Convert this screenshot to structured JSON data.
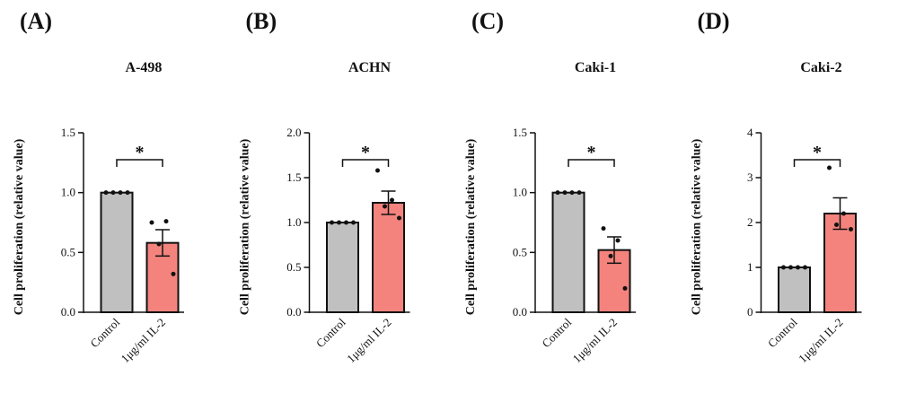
{
  "chart_data": [
    {
      "type": "bar",
      "panel": "(A)",
      "title": "A-498",
      "y_label": "Cell proliferation (relative value)",
      "categories": [
        "Control",
        "1μg/ml IL-2"
      ],
      "values": [
        1.0,
        0.58
      ],
      "errors": [
        0,
        0.11
      ],
      "points": [
        [
          1.0,
          1.0,
          1.0,
          1.0
        ],
        [
          0.75,
          0.76,
          0.57,
          0.32
        ]
      ],
      "colors": [
        "#c0c0c0",
        "#f4837d"
      ],
      "significance": "*",
      "ylim": [
        0,
        1.5
      ],
      "yticks": [
        {
          "value": 0,
          "label": "0.0"
        },
        0.5,
        {
          "value": 1,
          "label": "1.0"
        },
        1.5
      ]
    },
    {
      "type": "bar",
      "panel": "(B)",
      "title": "ACHN",
      "y_label": "Cell proliferation (relative value)",
      "categories": [
        "Control",
        "1μg/ml IL-2"
      ],
      "values": [
        1.0,
        1.22
      ],
      "errors": [
        0,
        0.13
      ],
      "points": [
        [
          1.0,
          1.0,
          1.0,
          1.0
        ],
        [
          1.58,
          1.25,
          1.18,
          1.05
        ]
      ],
      "colors": [
        "#c0c0c0",
        "#f4837d"
      ],
      "significance": "*",
      "ylim": [
        0,
        2
      ],
      "yticks": [
        {
          "value": 0,
          "label": "0.0"
        },
        0.5,
        {
          "value": 1,
          "label": "1.0"
        },
        1.5,
        {
          "value": 2,
          "label": "2.0"
        }
      ]
    },
    {
      "type": "bar",
      "panel": "(C)",
      "title": "Caki-1",
      "y_label": "Cell proliferation (relative value)",
      "categories": [
        "Control",
        "1μg/ml IL-2"
      ],
      "values": [
        1.0,
        0.52
      ],
      "errors": [
        0,
        0.11
      ],
      "points": [
        [
          1.0,
          1.0,
          1.0,
          1.0
        ],
        [
          0.7,
          0.6,
          0.47,
          0.2
        ]
      ],
      "colors": [
        "#c0c0c0",
        "#f4837d"
      ],
      "significance": "*",
      "ylim": [
        0,
        1.5
      ],
      "yticks": [
        {
          "value": 0,
          "label": "0.0"
        },
        0.5,
        {
          "value": 1,
          "label": "1.0"
        },
        1.5
      ]
    },
    {
      "type": "bar",
      "panel": "(D)",
      "title": "Caki-2",
      "y_label": "Cell proliferation (relative value)",
      "categories": [
        "Control",
        "1μg/ml IL-2"
      ],
      "values": [
        1.0,
        2.2
      ],
      "errors": [
        0,
        0.35
      ],
      "points": [
        [
          1.0,
          1.0,
          1.0,
          1.0
        ],
        [
          3.22,
          2.2,
          1.95,
          1.85
        ]
      ],
      "colors": [
        "#c0c0c0",
        "#f4837d"
      ],
      "significance": "*",
      "ylim": [
        0,
        4
      ],
      "yticks": [
        0,
        1,
        2,
        3,
        4
      ]
    }
  ]
}
